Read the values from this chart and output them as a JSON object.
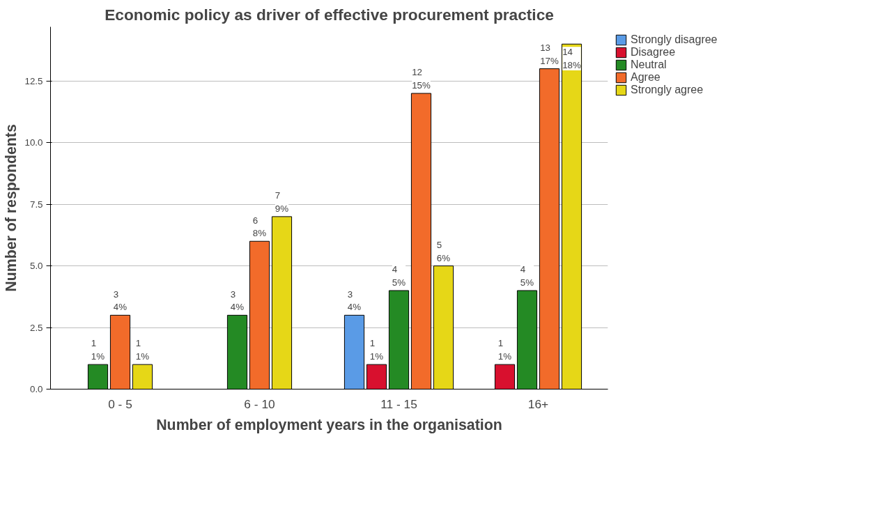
{
  "chart_data": {
    "type": "bar",
    "title": "Economic policy as driver of effective procurement practice",
    "xlabel": "Number of employment years in the organisation",
    "ylabel": "Number of respondents",
    "categories": [
      "0 - 5",
      "6 - 10",
      "11 - 15",
      "16+"
    ],
    "series": [
      {
        "name": "Strongly disagree",
        "color": "#5a9be6",
        "values": [
          null,
          null,
          3,
          null
        ],
        "value_labels": [
          null,
          null,
          "3\n4%",
          null
        ]
      },
      {
        "name": "Disagree",
        "color": "#d8102e",
        "values": [
          null,
          null,
          1,
          1
        ],
        "value_labels": [
          null,
          null,
          "1\n1%",
          "1\n1%"
        ]
      },
      {
        "name": "Neutral",
        "color": "#248a24",
        "values": [
          1,
          3,
          4,
          4
        ],
        "value_labels": [
          "1\n1%",
          "3\n4%",
          "4\n5%",
          "4\n5%"
        ]
      },
      {
        "name": "Agree",
        "color": "#f26b2a",
        "values": [
          3,
          6,
          12,
          13
        ],
        "value_labels": [
          "3\n4%",
          "6\n8%",
          "12\n15%",
          "13\n17%"
        ]
      },
      {
        "name": "Strongly agree",
        "color": "#e6d717",
        "values": [
          1,
          7,
          5,
          14
        ],
        "value_labels": [
          "1\n1%",
          "7\n9%",
          "5\n6%",
          "14\n18%"
        ]
      }
    ],
    "ylim": [
      0,
      14.7
    ],
    "yticks": [
      {
        "value": 0,
        "label": "0.0"
      },
      {
        "value": 2.5,
        "label": "2.5"
      },
      {
        "value": 5,
        "label": "5.0"
      },
      {
        "value": 7.5,
        "label": "7.5"
      },
      {
        "value": 10,
        "label": "10.0"
      },
      {
        "value": 12.5,
        "label": "12.5"
      }
    ],
    "grid": "y",
    "legend": "right"
  }
}
